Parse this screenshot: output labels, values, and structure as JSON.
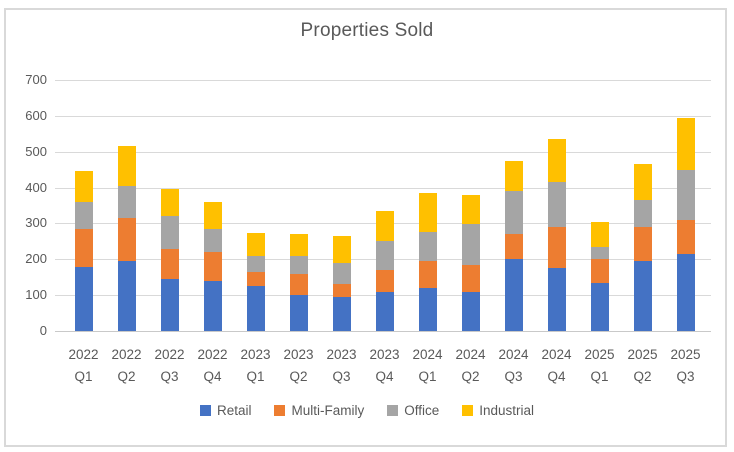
{
  "title": "Properties Sold",
  "colors": {
    "retail": "#4472C4",
    "multi_family": "#ED7D31",
    "office": "#A5A5A5",
    "industrial": "#FFC000",
    "gridline": "#D9D9D9",
    "text": "#595959"
  },
  "chart_data": {
    "type": "bar",
    "stacked": true,
    "title": "Properties Sold",
    "categories": [
      "2022 Q1",
      "2022 Q2",
      "2022 Q3",
      "2022 Q4",
      "2023 Q1",
      "2023 Q2",
      "2023 Q3",
      "2023 Q4",
      "2024 Q1",
      "2024 Q2",
      "2024 Q3",
      "2024 Q4",
      "2025 Q1",
      "2025 Q2",
      "2025 Q3"
    ],
    "series": [
      {
        "name": "Retail",
        "color": "#4472C4",
        "values": [
          180,
          195,
          145,
          140,
          125,
          100,
          95,
          110,
          120,
          110,
          200,
          175,
          135,
          195,
          215
        ]
      },
      {
        "name": "Multi-Family",
        "color": "#ED7D31",
        "values": [
          105,
          120,
          85,
          80,
          40,
          60,
          35,
          60,
          75,
          75,
          70,
          115,
          65,
          95,
          95
        ]
      },
      {
        "name": "Office",
        "color": "#A5A5A5",
        "values": [
          75,
          90,
          90,
          65,
          45,
          50,
          60,
          80,
          80,
          115,
          120,
          125,
          35,
          75,
          140
        ]
      },
      {
        "name": "Industrial",
        "color": "#FFC000",
        "values": [
          85,
          110,
          75,
          75,
          65,
          60,
          75,
          85,
          110,
          80,
          85,
          120,
          70,
          100,
          145
        ]
      }
    ],
    "totals": [
      445,
      515,
      395,
      360,
      275,
      270,
      265,
      335,
      385,
      380,
      475,
      535,
      305,
      465,
      595
    ],
    "xlabel": "",
    "ylabel": "",
    "ylim": [
      0,
      700
    ],
    "ytick_step": 100,
    "yticks": [
      "0",
      "100",
      "200",
      "300",
      "400",
      "500",
      "600",
      "700"
    ],
    "grid": true,
    "legend_position": "bottom"
  }
}
